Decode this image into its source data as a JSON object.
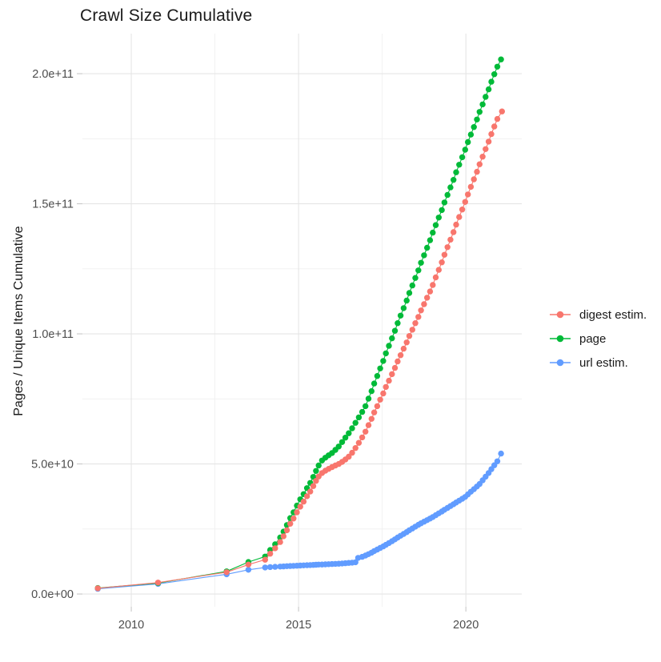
{
  "chart_data": {
    "type": "scatter",
    "title": "Crawl Size Cumulative",
    "xlabel": "",
    "ylabel": "Pages / Unique Items Cumulative",
    "legend_position": "right",
    "grid": true,
    "value_unit": "billions (1e9)",
    "axes": {
      "x": {
        "min": 2008.54,
        "max": 2021.67,
        "major_ticks": [
          2010,
          2015,
          2020
        ],
        "tick_labels": [
          "2010",
          "2015",
          "2020"
        ],
        "minor_ticks": [
          2012.5,
          2017.5
        ]
      },
      "y": {
        "min": -4.9,
        "max": 215.4,
        "major_ticks": [
          0,
          50,
          100,
          150,
          200
        ],
        "tick_labels": [
          "0.0e+00",
          "5.0e+10",
          "1.0e+11",
          "1.5e+11",
          "2.0e+11"
        ],
        "minor_ticks": [
          25,
          75,
          125,
          175
        ]
      }
    },
    "series": [
      {
        "name": "digest estim.",
        "color": "#F8766D",
        "points": [
          [
            2009.0,
            2.2
          ],
          [
            2010.8,
            4.4
          ],
          [
            2012.85,
            8.4
          ],
          [
            2013.5,
            11.3
          ],
          [
            2014.0,
            13.2
          ],
          [
            2014.15,
            15.5
          ],
          [
            2014.3,
            17.6
          ],
          [
            2014.45,
            20.0
          ],
          [
            2014.55,
            22.2
          ],
          [
            2014.65,
            24.5
          ],
          [
            2014.75,
            27.0
          ],
          [
            2014.85,
            29.0
          ],
          [
            2014.95,
            31.4
          ],
          [
            2015.05,
            33.6
          ],
          [
            2015.15,
            35.5
          ],
          [
            2015.25,
            37.6
          ],
          [
            2015.35,
            39.4
          ],
          [
            2015.44,
            41.5
          ],
          [
            2015.52,
            43.5
          ],
          [
            2015.6,
            45.2
          ],
          [
            2015.7,
            46.5
          ],
          [
            2015.8,
            47.4
          ],
          [
            2015.9,
            48.1
          ],
          [
            2016.0,
            48.8
          ],
          [
            2016.1,
            49.4
          ],
          [
            2016.2,
            50.0
          ],
          [
            2016.3,
            50.8
          ],
          [
            2016.4,
            51.7
          ],
          [
            2016.5,
            52.8
          ],
          [
            2016.6,
            54.3
          ],
          [
            2016.7,
            56.1
          ],
          [
            2016.8,
            58.1
          ],
          [
            2016.9,
            60.2
          ],
          [
            2017.0,
            62.4
          ],
          [
            2017.09,
            64.9
          ],
          [
            2017.18,
            67.3
          ],
          [
            2017.26,
            69.8
          ],
          [
            2017.35,
            72.2
          ],
          [
            2017.44,
            74.7
          ],
          [
            2017.53,
            77.1
          ],
          [
            2017.61,
            79.6
          ],
          [
            2017.7,
            82.0
          ],
          [
            2017.79,
            84.5
          ],
          [
            2017.88,
            86.9
          ],
          [
            2017.96,
            89.4
          ],
          [
            2018.05,
            91.8
          ],
          [
            2018.14,
            94.3
          ],
          [
            2018.23,
            96.7
          ],
          [
            2018.31,
            99.2
          ],
          [
            2018.4,
            101.6
          ],
          [
            2018.49,
            104.1
          ],
          [
            2018.58,
            106.5
          ],
          [
            2018.66,
            109.0
          ],
          [
            2018.75,
            111.4
          ],
          [
            2018.84,
            113.9
          ],
          [
            2018.93,
            116.3
          ],
          [
            2019.01,
            118.8
          ],
          [
            2019.1,
            121.7
          ],
          [
            2019.19,
            124.6
          ],
          [
            2019.28,
            127.5
          ],
          [
            2019.36,
            130.4
          ],
          [
            2019.45,
            133.3
          ],
          [
            2019.54,
            136.2
          ],
          [
            2019.63,
            139.1
          ],
          [
            2019.71,
            142.0
          ],
          [
            2019.8,
            144.9
          ],
          [
            2019.89,
            147.8
          ],
          [
            2019.98,
            150.7
          ],
          [
            2020.06,
            153.6
          ],
          [
            2020.15,
            156.5
          ],
          [
            2020.24,
            159.4
          ],
          [
            2020.33,
            162.3
          ],
          [
            2020.41,
            165.2
          ],
          [
            2020.5,
            168.1
          ],
          [
            2020.59,
            171.0
          ],
          [
            2020.68,
            173.9
          ],
          [
            2020.76,
            176.8
          ],
          [
            2020.85,
            179.7
          ],
          [
            2020.94,
            182.6
          ],
          [
            2021.08,
            185.5
          ]
        ]
      },
      {
        "name": "page",
        "color": "#00BA38",
        "points": [
          [
            2009.0,
            2.3
          ],
          [
            2010.8,
            4.2
          ],
          [
            2012.85,
            8.7
          ],
          [
            2013.5,
            12.3
          ],
          [
            2014.0,
            14.4
          ],
          [
            2014.15,
            16.9
          ],
          [
            2014.3,
            19.1
          ],
          [
            2014.45,
            21.7
          ],
          [
            2014.55,
            24.0
          ],
          [
            2014.65,
            26.5
          ],
          [
            2014.75,
            29.2
          ],
          [
            2014.85,
            31.4
          ],
          [
            2014.95,
            34.0
          ],
          [
            2015.05,
            36.4
          ],
          [
            2015.15,
            38.4
          ],
          [
            2015.25,
            40.7
          ],
          [
            2015.35,
            42.7
          ],
          [
            2015.44,
            45.0
          ],
          [
            2015.52,
            47.3
          ],
          [
            2015.6,
            49.4
          ],
          [
            2015.7,
            51.3
          ],
          [
            2015.8,
            52.4
          ],
          [
            2015.9,
            53.3
          ],
          [
            2016.0,
            54.2
          ],
          [
            2016.1,
            55.4
          ],
          [
            2016.2,
            56.7
          ],
          [
            2016.3,
            58.4
          ],
          [
            2016.4,
            60.1
          ],
          [
            2016.5,
            61.8
          ],
          [
            2016.6,
            63.7
          ],
          [
            2016.7,
            65.8
          ],
          [
            2016.8,
            67.9
          ],
          [
            2016.9,
            70.0
          ],
          [
            2017.0,
            72.2
          ],
          [
            2017.09,
            75.1
          ],
          [
            2017.18,
            78.0
          ],
          [
            2017.26,
            80.9
          ],
          [
            2017.35,
            83.8
          ],
          [
            2017.44,
            86.7
          ],
          [
            2017.53,
            89.6
          ],
          [
            2017.61,
            92.5
          ],
          [
            2017.7,
            95.4
          ],
          [
            2017.79,
            98.3
          ],
          [
            2017.88,
            101.2
          ],
          [
            2017.96,
            104.1
          ],
          [
            2018.05,
            107.0
          ],
          [
            2018.14,
            109.9
          ],
          [
            2018.23,
            112.8
          ],
          [
            2018.31,
            115.7
          ],
          [
            2018.4,
            118.6
          ],
          [
            2018.49,
            121.5
          ],
          [
            2018.58,
            124.4
          ],
          [
            2018.66,
            127.3
          ],
          [
            2018.75,
            130.2
          ],
          [
            2018.84,
            133.1
          ],
          [
            2018.93,
            136.0
          ],
          [
            2019.01,
            138.9
          ],
          [
            2019.1,
            141.8
          ],
          [
            2019.19,
            144.7
          ],
          [
            2019.28,
            147.6
          ],
          [
            2019.36,
            150.5
          ],
          [
            2019.45,
            153.4
          ],
          [
            2019.54,
            156.3
          ],
          [
            2019.63,
            159.2
          ],
          [
            2019.71,
            162.1
          ],
          [
            2019.8,
            165.0
          ],
          [
            2019.89,
            167.9
          ],
          [
            2019.98,
            170.8
          ],
          [
            2020.06,
            173.7
          ],
          [
            2020.15,
            176.6
          ],
          [
            2020.24,
            179.5
          ],
          [
            2020.33,
            182.4
          ],
          [
            2020.41,
            185.3
          ],
          [
            2020.5,
            188.2
          ],
          [
            2020.59,
            191.1
          ],
          [
            2020.68,
            194.0
          ],
          [
            2020.76,
            196.9
          ],
          [
            2020.85,
            199.8
          ],
          [
            2020.94,
            202.7
          ],
          [
            2021.05,
            205.5
          ]
        ]
      },
      {
        "name": "url estim.",
        "color": "#619CFF",
        "points": [
          [
            2009.0,
            2.0
          ],
          [
            2010.8,
            3.9
          ],
          [
            2012.85,
            7.6
          ],
          [
            2013.5,
            9.3
          ],
          [
            2014.0,
            10.2
          ],
          [
            2014.15,
            10.35
          ],
          [
            2014.3,
            10.45
          ],
          [
            2014.45,
            10.55
          ],
          [
            2014.55,
            10.62
          ],
          [
            2014.65,
            10.7
          ],
          [
            2014.75,
            10.76
          ],
          [
            2014.85,
            10.82
          ],
          [
            2014.95,
            10.88
          ],
          [
            2015.05,
            10.95
          ],
          [
            2015.15,
            11.0
          ],
          [
            2015.25,
            11.06
          ],
          [
            2015.35,
            11.12
          ],
          [
            2015.44,
            11.18
          ],
          [
            2015.52,
            11.24
          ],
          [
            2015.6,
            11.3
          ],
          [
            2015.7,
            11.36
          ],
          [
            2015.8,
            11.42
          ],
          [
            2015.9,
            11.48
          ],
          [
            2016.0,
            11.54
          ],
          [
            2016.1,
            11.6
          ],
          [
            2016.2,
            11.66
          ],
          [
            2016.3,
            11.75
          ],
          [
            2016.4,
            11.85
          ],
          [
            2016.5,
            11.95
          ],
          [
            2016.6,
            12.05
          ],
          [
            2016.7,
            12.2
          ],
          [
            2016.78,
            13.9
          ],
          [
            2016.9,
            14.3
          ],
          [
            2017.0,
            14.8
          ],
          [
            2017.09,
            15.3
          ],
          [
            2017.18,
            15.9
          ],
          [
            2017.26,
            16.5
          ],
          [
            2017.35,
            17.1
          ],
          [
            2017.44,
            17.7
          ],
          [
            2017.53,
            18.3
          ],
          [
            2017.61,
            18.9
          ],
          [
            2017.7,
            19.6
          ],
          [
            2017.79,
            20.3
          ],
          [
            2017.88,
            21.0
          ],
          [
            2017.96,
            21.7
          ],
          [
            2018.05,
            22.4
          ],
          [
            2018.14,
            23.1
          ],
          [
            2018.23,
            23.8
          ],
          [
            2018.31,
            24.5
          ],
          [
            2018.4,
            25.2
          ],
          [
            2018.49,
            25.9
          ],
          [
            2018.58,
            26.6
          ],
          [
            2018.66,
            27.2
          ],
          [
            2018.75,
            27.8
          ],
          [
            2018.84,
            28.4
          ],
          [
            2018.93,
            29.0
          ],
          [
            2019.01,
            29.6
          ],
          [
            2019.1,
            30.3
          ],
          [
            2019.19,
            31.0
          ],
          [
            2019.28,
            31.7
          ],
          [
            2019.36,
            32.4
          ],
          [
            2019.45,
            33.1
          ],
          [
            2019.54,
            33.8
          ],
          [
            2019.63,
            34.5
          ],
          [
            2019.71,
            35.2
          ],
          [
            2019.8,
            35.9
          ],
          [
            2019.89,
            36.6
          ],
          [
            2019.98,
            37.3
          ],
          [
            2020.06,
            38.3
          ],
          [
            2020.15,
            39.3
          ],
          [
            2020.24,
            40.3
          ],
          [
            2020.33,
            41.3
          ],
          [
            2020.41,
            42.3
          ],
          [
            2020.5,
            43.7
          ],
          [
            2020.59,
            45.1
          ],
          [
            2020.68,
            46.5
          ],
          [
            2020.76,
            48.0
          ],
          [
            2020.85,
            49.5
          ],
          [
            2020.94,
            51.0
          ],
          [
            2021.05,
            54.0
          ]
        ]
      }
    ]
  }
}
